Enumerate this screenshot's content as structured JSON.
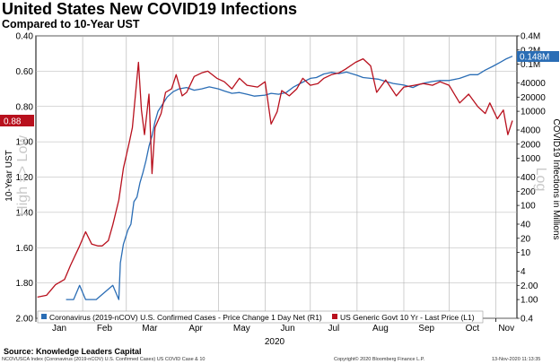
{
  "header": {
    "title": "United States New COVID19 Infections",
    "subtitle": "Compared to 10-Year UST"
  },
  "footer": {
    "source": "Source: Knowledge Leaders Capital",
    "fine_left": "NCOVUSCA Index (Coronavirus (2019-nCOV) U.S. Confirmed Cases) US COVID Case & 10",
    "fine_mid": "Copyright© 2020 Bloomberg Finance L.P.",
    "fine_right": "13-Nov-2020 11:13:35"
  },
  "chart_data": {
    "type": "line",
    "title": "United States New COVID19 Infections",
    "subtitle": "Compared to 10-Year UST",
    "xlabel": "2020",
    "x_ticks": [
      "Jan",
      "Feb",
      "Mar",
      "Apr",
      "May",
      "Jun",
      "Jul",
      "Aug",
      "Sep",
      "Oct",
      "Nov"
    ],
    "left_axis": {
      "label": "10-Year UST",
      "side_note": "High => Low",
      "inverted": true,
      "range": [
        0.4,
        2.0
      ],
      "ticks": [
        "0.40",
        "0.60",
        "0.80",
        "1.00",
        "1.20",
        "1.40",
        "1.60",
        "1.80",
        "2.00"
      ]
    },
    "right_axis": {
      "label": "COVID19 Infections in Millions",
      "side_note": "Log",
      "scale": "log",
      "range": [
        0.4,
        400000
      ],
      "ticks": [
        "0.4M",
        "0.2M",
        "0.1M",
        "40000",
        "20000",
        "10000",
        "4000",
        "2000",
        "1000",
        "400",
        "200",
        "100",
        "40",
        "20",
        "10",
        "4",
        "2.00",
        "1.00",
        "0.4"
      ]
    },
    "grid": true,
    "legend_position": "bottom",
    "last_value_labels": {
      "cases": "0.148M",
      "yield": "0.88"
    },
    "series": [
      {
        "name": "Coronavirus (2019-nCOV) U.S. Confirmed Cases - Price Change 1 Day Net (R1)",
        "axis": "right",
        "color": "#2a6db5",
        "points": [
          [
            "2020-01-21",
            1
          ],
          [
            "2020-01-26",
            1
          ],
          [
            "2020-01-30",
            2
          ],
          [
            "2020-02-03",
            1
          ],
          [
            "2020-02-10",
            1
          ],
          [
            "2020-02-21",
            2
          ],
          [
            "2020-02-25",
            1
          ],
          [
            "2020-02-26",
            6
          ],
          [
            "2020-02-28",
            15
          ],
          [
            "2020-03-02",
            30
          ],
          [
            "2020-03-04",
            40
          ],
          [
            "2020-03-06",
            120
          ],
          [
            "2020-03-08",
            150
          ],
          [
            "2020-03-10",
            300
          ],
          [
            "2020-03-12",
            500
          ],
          [
            "2020-03-14",
            900
          ],
          [
            "2020-03-16",
            1800
          ],
          [
            "2020-03-18",
            3000
          ],
          [
            "2020-03-20",
            6000
          ],
          [
            "2020-03-22",
            10000
          ],
          [
            "2020-03-25",
            14000
          ],
          [
            "2020-03-28",
            20000
          ],
          [
            "2020-04-01",
            26000
          ],
          [
            "2020-04-05",
            30000
          ],
          [
            "2020-04-10",
            32000
          ],
          [
            "2020-04-15",
            28000
          ],
          [
            "2020-04-20",
            30000
          ],
          [
            "2020-04-25",
            33000
          ],
          [
            "2020-05-01",
            30000
          ],
          [
            "2020-05-05",
            27000
          ],
          [
            "2020-05-10",
            24000
          ],
          [
            "2020-05-15",
            25000
          ],
          [
            "2020-05-20",
            23000
          ],
          [
            "2020-05-25",
            21000
          ],
          [
            "2020-06-01",
            22000
          ],
          [
            "2020-06-05",
            24000
          ],
          [
            "2020-06-10",
            23000
          ],
          [
            "2020-06-15",
            25000
          ],
          [
            "2020-06-20",
            33000
          ],
          [
            "2020-06-25",
            40000
          ],
          [
            "2020-07-01",
            50000
          ],
          [
            "2020-07-05",
            52000
          ],
          [
            "2020-07-10",
            62000
          ],
          [
            "2020-07-15",
            67000
          ],
          [
            "2020-07-20",
            63000
          ],
          [
            "2020-07-25",
            68000
          ],
          [
            "2020-08-01",
            58000
          ],
          [
            "2020-08-05",
            52000
          ],
          [
            "2020-08-10",
            50000
          ],
          [
            "2020-08-15",
            48000
          ],
          [
            "2020-08-20",
            43000
          ],
          [
            "2020-08-25",
            39000
          ],
          [
            "2020-09-01",
            36000
          ],
          [
            "2020-09-07",
            32000
          ],
          [
            "2020-09-12",
            38000
          ],
          [
            "2020-09-15",
            40000
          ],
          [
            "2020-09-20",
            43000
          ],
          [
            "2020-09-25",
            45000
          ],
          [
            "2020-10-01",
            45000
          ],
          [
            "2020-10-08",
            50000
          ],
          [
            "2020-10-15",
            60000
          ],
          [
            "2020-10-20",
            60000
          ],
          [
            "2020-10-25",
            75000
          ],
          [
            "2020-10-30",
            90000
          ],
          [
            "2020-11-04",
            110000
          ],
          [
            "2020-11-08",
            130000
          ],
          [
            "2020-11-12",
            148000
          ]
        ]
      },
      {
        "name": "US Generic Govt 10 Yr - Last Price (L1)",
        "axis": "left",
        "color": "#b8101d",
        "points": [
          [
            "2020-01-02",
            1.88
          ],
          [
            "2020-01-08",
            1.87
          ],
          [
            "2020-01-14",
            1.81
          ],
          [
            "2020-01-20",
            1.78
          ],
          [
            "2020-01-24",
            1.7
          ],
          [
            "2020-01-30",
            1.59
          ],
          [
            "2020-02-03",
            1.51
          ],
          [
            "2020-02-07",
            1.58
          ],
          [
            "2020-02-11",
            1.59
          ],
          [
            "2020-02-14",
            1.59
          ],
          [
            "2020-02-18",
            1.56
          ],
          [
            "2020-02-21",
            1.47
          ],
          [
            "2020-02-25",
            1.33
          ],
          [
            "2020-02-28",
            1.15
          ],
          [
            "2020-03-03",
            1.0
          ],
          [
            "2020-03-05",
            0.92
          ],
          [
            "2020-03-09",
            0.55
          ],
          [
            "2020-03-11",
            0.82
          ],
          [
            "2020-03-13",
            0.96
          ],
          [
            "2020-03-16",
            0.73
          ],
          [
            "2020-03-18",
            1.18
          ],
          [
            "2020-03-20",
            0.92
          ],
          [
            "2020-03-24",
            0.84
          ],
          [
            "2020-03-27",
            0.72
          ],
          [
            "2020-03-31",
            0.7
          ],
          [
            "2020-04-03",
            0.62
          ],
          [
            "2020-04-07",
            0.74
          ],
          [
            "2020-04-10",
            0.72
          ],
          [
            "2020-04-15",
            0.63
          ],
          [
            "2020-04-20",
            0.61
          ],
          [
            "2020-04-24",
            0.6
          ],
          [
            "2020-04-30",
            0.64
          ],
          [
            "2020-05-05",
            0.66
          ],
          [
            "2020-05-10",
            0.7
          ],
          [
            "2020-05-15",
            0.64
          ],
          [
            "2020-05-20",
            0.68
          ],
          [
            "2020-05-27",
            0.69
          ],
          [
            "2020-06-01",
            0.66
          ],
          [
            "2020-06-05",
            0.9
          ],
          [
            "2020-06-09",
            0.83
          ],
          [
            "2020-06-12",
            0.71
          ],
          [
            "2020-06-17",
            0.74
          ],
          [
            "2020-06-22",
            0.7
          ],
          [
            "2020-06-26",
            0.64
          ],
          [
            "2020-07-01",
            0.68
          ],
          [
            "2020-07-06",
            0.67
          ],
          [
            "2020-07-10",
            0.64
          ],
          [
            "2020-07-15",
            0.62
          ],
          [
            "2020-07-20",
            0.61
          ],
          [
            "2020-07-24",
            0.59
          ],
          [
            "2020-07-31",
            0.55
          ],
          [
            "2020-08-05",
            0.53
          ],
          [
            "2020-08-10",
            0.57
          ],
          [
            "2020-08-14",
            0.72
          ],
          [
            "2020-08-20",
            0.65
          ],
          [
            "2020-08-27",
            0.74
          ],
          [
            "2020-09-01",
            0.69
          ],
          [
            "2020-09-08",
            0.68
          ],
          [
            "2020-09-14",
            0.67
          ],
          [
            "2020-09-20",
            0.68
          ],
          [
            "2020-09-25",
            0.66
          ],
          [
            "2020-10-01",
            0.68
          ],
          [
            "2020-10-08",
            0.78
          ],
          [
            "2020-10-14",
            0.73
          ],
          [
            "2020-10-20",
            0.8
          ],
          [
            "2020-10-25",
            0.84
          ],
          [
            "2020-10-28",
            0.78
          ],
          [
            "2020-11-02",
            0.87
          ],
          [
            "2020-11-06",
            0.82
          ],
          [
            "2020-11-09",
            0.96
          ],
          [
            "2020-11-12",
            0.88
          ]
        ]
      }
    ]
  }
}
